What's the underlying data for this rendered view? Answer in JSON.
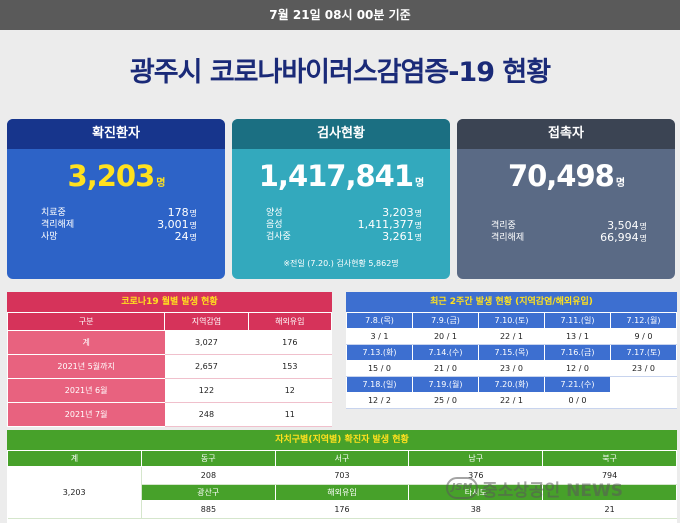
{
  "topbar": {
    "text": "7월 21일 08시 00분 기준"
  },
  "title": "광주시 코로나바이러스감염증-19 현황",
  "confirmed": {
    "head": "확진환자",
    "total": "3,203",
    "unit": "명",
    "rows": [
      {
        "label": "치료중",
        "value": "178"
      },
      {
        "label": "격리해제",
        "value": "3,001"
      },
      {
        "label": "사망",
        "value": "24"
      }
    ]
  },
  "tests": {
    "head": "검사현황",
    "total": "1,417,841",
    "unit": "명",
    "rows": [
      {
        "label": "양성",
        "value": "3,203"
      },
      {
        "label": "음성",
        "value": "1,411,377"
      },
      {
        "label": "검사중",
        "value": "3,261"
      }
    ],
    "note": "※전일 (7.20.) 검사현황 5,862명"
  },
  "contacts": {
    "head": "접촉자",
    "total": "70,498",
    "unit": "명",
    "rows": [
      {
        "label": "격리중",
        "value": "3,504"
      },
      {
        "label": "격리해제",
        "value": "66,994"
      }
    ]
  },
  "monthly": {
    "title": "코로나19 월별 발생 현황",
    "headers": [
      "구분",
      "지역감염",
      "해외유입"
    ],
    "rows": [
      {
        "label": "계",
        "local": "3,027",
        "overseas": "176"
      },
      {
        "label": "2021년 5월까지",
        "local": "2,657",
        "overseas": "153"
      },
      {
        "label": "2021년 6월",
        "local": "122",
        "overseas": "12"
      },
      {
        "label": "2021년 7월",
        "local": "248",
        "overseas": "11"
      }
    ]
  },
  "recent": {
    "title": "최근 2주간 발생 현황 (지역감염/해외유입)",
    "weeks": [
      {
        "dates": [
          "7.8.(목)",
          "7.9.(금)",
          "7.10.(토)",
          "7.11.(일)",
          "7.12.(월)"
        ],
        "values": [
          "3 / 1",
          "20 / 1",
          "22 / 1",
          "13 / 1",
          "9 / 0"
        ]
      },
      {
        "dates": [
          "7.13.(화)",
          "7.14.(수)",
          "7.15.(목)",
          "7.16.(금)",
          "7.17.(토)"
        ],
        "values": [
          "15 / 0",
          "21 / 0",
          "23 / 0",
          "12 / 0",
          "23 / 0"
        ]
      },
      {
        "dates": [
          "7.18.(일)",
          "7.19.(월)",
          "7.20.(화)",
          "7.21.(수)",
          ""
        ],
        "values": [
          "12 / 2",
          "25 / 0",
          "22 / 1",
          "0 / 0",
          ""
        ]
      }
    ]
  },
  "district": {
    "title": "자치구별(지역별) 확진자 발생 현황",
    "total_label": "계",
    "total_value": "3,203",
    "row1": {
      "headers": [
        "동구",
        "서구",
        "남구",
        "북구"
      ],
      "values": [
        "208",
        "703",
        "376",
        "794"
      ]
    },
    "row2": {
      "headers": [
        "광산구",
        "해외유입",
        "타시도",
        ""
      ],
      "values": [
        "885",
        "176",
        "38",
        "21"
      ]
    }
  },
  "watermark": {
    "logo": "JSM",
    "text": "중소상공인 NEWS"
  }
}
